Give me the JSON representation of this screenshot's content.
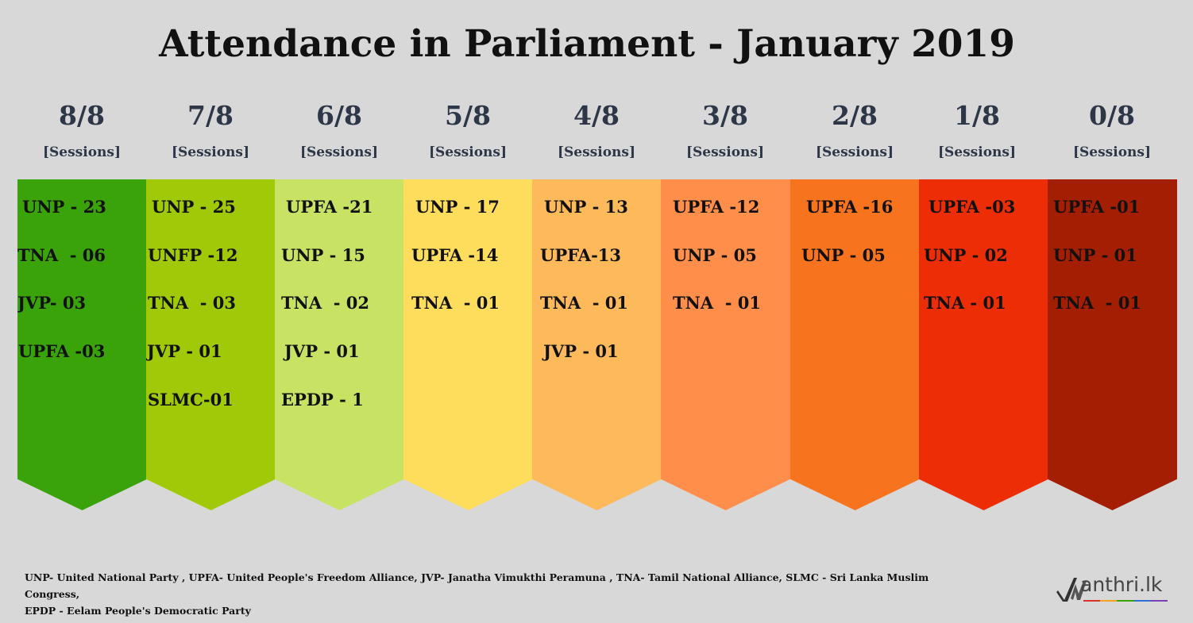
{
  "title": "Attendance in Parliament - January 2019",
  "columns": [
    {
      "fraction": "8/8",
      "sessions_label": "[Sessions]",
      "color": "#3aa30a",
      "entries": [
        "UNP - 23",
        "TNA  - 06",
        "JVP- 03",
        "UPFA -03"
      ]
    },
    {
      "fraction": "7/8",
      "sessions_label": "[Sessions]",
      "color": "#a0c908",
      "entries": [
        "UNP - 25",
        "UNFP -12",
        "TNA  - 03",
        "JVP - 01",
        "SLMC-01"
      ]
    },
    {
      "fraction": "6/8",
      "sessions_label": "[Sessions]",
      "color": "#c8e264",
      "entries": [
        "UPFA -21",
        "UNP - 15",
        "TNA  - 02",
        "JVP - 01",
        "EPDP - 1"
      ]
    },
    {
      "fraction": "5/8",
      "sessions_label": "[Sessions]",
      "color": "#fedc5c",
      "entries": [
        "UNP - 17",
        "UPFA -14",
        "TNA  - 01"
      ]
    },
    {
      "fraction": "4/8",
      "sessions_label": "[Sessions]",
      "color": "#fdb95a",
      "entries": [
        "UNP - 13",
        "UPFA-13",
        "TNA  - 01",
        "JVP - 01"
      ]
    },
    {
      "fraction": "3/8",
      "sessions_label": "[Sessions]",
      "color": "#fe8e4a",
      "entries": [
        "UPFA -12",
        "UNP - 05",
        "TNA  - 01"
      ]
    },
    {
      "fraction": "2/8",
      "sessions_label": "[Sessions]",
      "color": "#f8731e",
      "entries": [
        "UPFA -16",
        "UNP - 05"
      ]
    },
    {
      "fraction": "1/8",
      "sessions_label": "[Sessions]",
      "color": "#ec2d06",
      "entries": [
        "UPFA -03",
        "UNP - 02",
        "TNA - 01"
      ]
    },
    {
      "fraction": "0/8",
      "sessions_label": "[Sessions]",
      "color": "#a31e02",
      "entries": [
        "UPFA -01",
        "UNP - 01",
        "TNA  - 01"
      ]
    }
  ],
  "footnote": {
    "line1": "UNP- United National Party , UPFA- United People's Freedom Alliance, JVP- Janatha Vimukthi Peramuna , TNA- Tamil National Alliance, SLMC - Sri Lanka Muslim Congress,",
    "line2": "EPDP - Eelam People's Democratic Party"
  },
  "logo": {
    "text": "anthri.lk",
    "icon": "checkmark-m-icon",
    "stripe_colors": [
      "#d9342b",
      "#f2a51a",
      "#3aa30a",
      "#2d6fd1",
      "#7a3fb0"
    ]
  }
}
